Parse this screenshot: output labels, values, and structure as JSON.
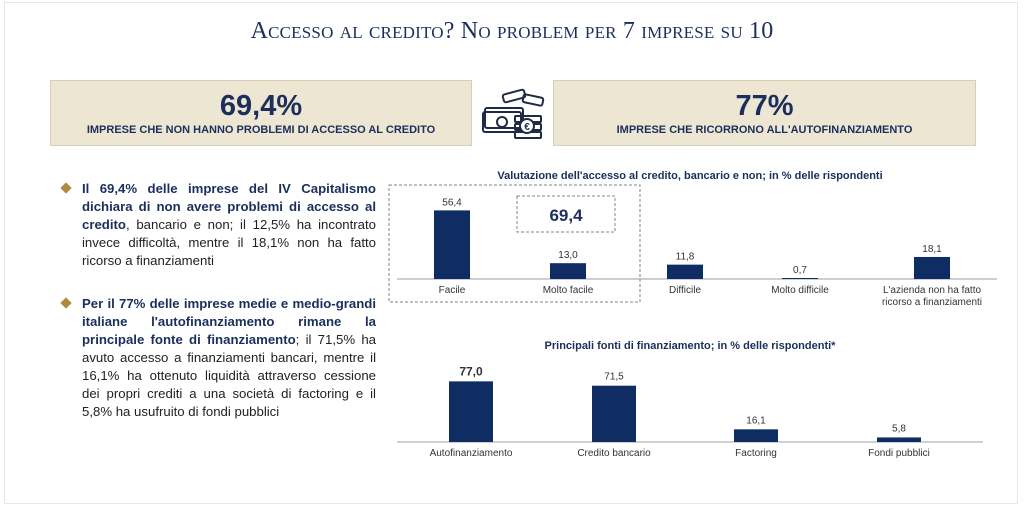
{
  "title": "Accesso al credito? No problem per 7 imprese su 10",
  "kpis": [
    {
      "value": "69,4%",
      "label": "IMPRESE CHE NON HANNO PROBLEMI DI ACCESSO AL CREDITO"
    },
    {
      "value": "77%",
      "label": "IMPRESE CHE RICORRONO ALL'AUTOFINANZIAMENTO"
    }
  ],
  "icon": "money-stack-icon",
  "bullets": [
    {
      "bold": "Il 69,4% delle imprese del IV Capitalismo dichiara di non avere problemi di accesso al credito",
      "rest": ", bancario e non; il 12,5% ha incontrato invece difficoltà, mentre il 18,1% non ha fatto ricorso a finanziamenti"
    },
    {
      "bold": "Per il 77% delle imprese medie e medio-grandi italiane l'autofinanziamento rimane la principale fonte di finanziamento",
      "rest": "; il 71,5% ha avuto accesso a finanziamenti bancari, mentre il 16,1% ha ottenuto liquidità attraverso cessione dei propri crediti a una società di factoring e il 5,8% ha usufruito di fondi pubblici"
    }
  ],
  "colors": {
    "bar": "#0f2d63",
    "title": "#1b2e5c",
    "kpi_bg": "#ece6d2",
    "bullet": "#b08a3c"
  },
  "chart_data": [
    {
      "type": "bar",
      "title": "Valutazione dell'accesso al credito, bancario e non; in % delle rispondenti",
      "categories": [
        "Facile",
        "Molto facile",
        "Difficile",
        "Molto difficile",
        "L'azienda non ha fatto ricorso a finanziamenti"
      ],
      "values": [
        56.4,
        13.0,
        11.8,
        0.7,
        18.1
      ],
      "value_labels": [
        "56,4",
        "13,0",
        "11,8",
        "0,7",
        "18,1"
      ],
      "annotation": "69,4",
      "ylim": [
        0,
        60
      ],
      "grid": false
    },
    {
      "type": "bar",
      "title": "Principali fonti di finanziamento; in % delle rispondenti*",
      "categories": [
        "Autofinanziamento",
        "Credito bancario",
        "Factoring",
        "Fondi pubblici"
      ],
      "values": [
        77.0,
        71.5,
        16.1,
        5.8
      ],
      "value_labels": [
        "77,0",
        "71,5",
        "16,1",
        "5,8"
      ],
      "ylim": [
        0,
        80
      ],
      "grid": false
    }
  ]
}
